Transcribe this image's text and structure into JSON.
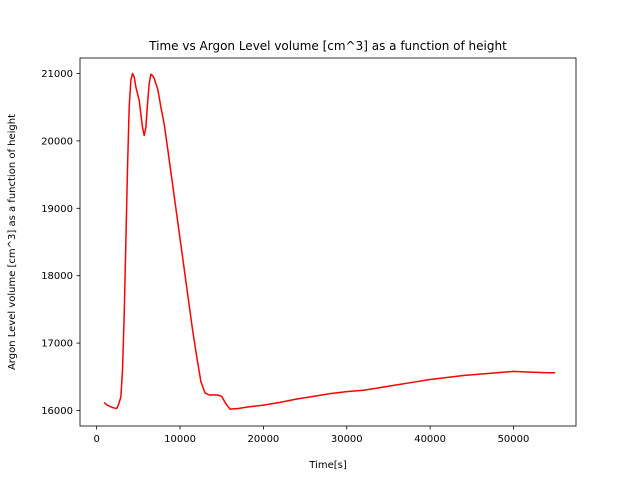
{
  "chart_data": {
    "type": "line",
    "title": "Time vs  Argon Level volume [cm^3] as a function of height",
    "xlabel": "Time[s]",
    "ylabel": "Argon Level volume [cm^3] as a function of height",
    "xlim": [
      -2000,
      57500
    ],
    "ylim": [
      15770,
      21230
    ],
    "xticks": [
      0,
      10000,
      20000,
      30000,
      40000,
      50000
    ],
    "yticks": [
      16000,
      17000,
      18000,
      19000,
      20000,
      21000
    ],
    "grid": false,
    "legend": "none",
    "series": [
      {
        "color": "#ff0000",
        "x": [
          900,
          1200,
          1600,
          2000,
          2400,
          2600,
          2900,
          3100,
          3300,
          3500,
          3700,
          3900,
          4100,
          4300,
          4500,
          4700,
          4900,
          5100,
          5300,
          5500,
          5700,
          5900,
          6100,
          6300,
          6500,
          6700,
          6900,
          7100,
          7300,
          7500,
          7700,
          7900,
          8100,
          8500,
          9000,
          9500,
          10000,
          10500,
          11000,
          11500,
          12000,
          12500,
          13000,
          13500,
          14000,
          14500,
          15000,
          15500,
          16000,
          17000,
          18000,
          20000,
          22000,
          24000,
          26000,
          28000,
          30000,
          32000,
          34000,
          36000,
          38000,
          40000,
          42000,
          44000,
          46000,
          48000,
          50000,
          52000,
          54000,
          55000
        ],
        "y": [
          16120,
          16085,
          16060,
          16040,
          16030,
          16080,
          16200,
          16600,
          17400,
          18500,
          19600,
          20500,
          20900,
          21000,
          20950,
          20800,
          20700,
          20600,
          20400,
          20200,
          20080,
          20200,
          20550,
          20850,
          20990,
          20970,
          20930,
          20850,
          20780,
          20650,
          20500,
          20380,
          20250,
          19900,
          19450,
          19000,
          18550,
          18100,
          17650,
          17200,
          16800,
          16430,
          16260,
          16230,
          16230,
          16230,
          16210,
          16100,
          16020,
          16030,
          16050,
          16080,
          16120,
          16170,
          16210,
          16250,
          16280,
          16300,
          16340,
          16380,
          16420,
          16460,
          16490,
          16520,
          16540,
          16560,
          16580,
          16570,
          16560,
          16560
        ]
      }
    ]
  }
}
